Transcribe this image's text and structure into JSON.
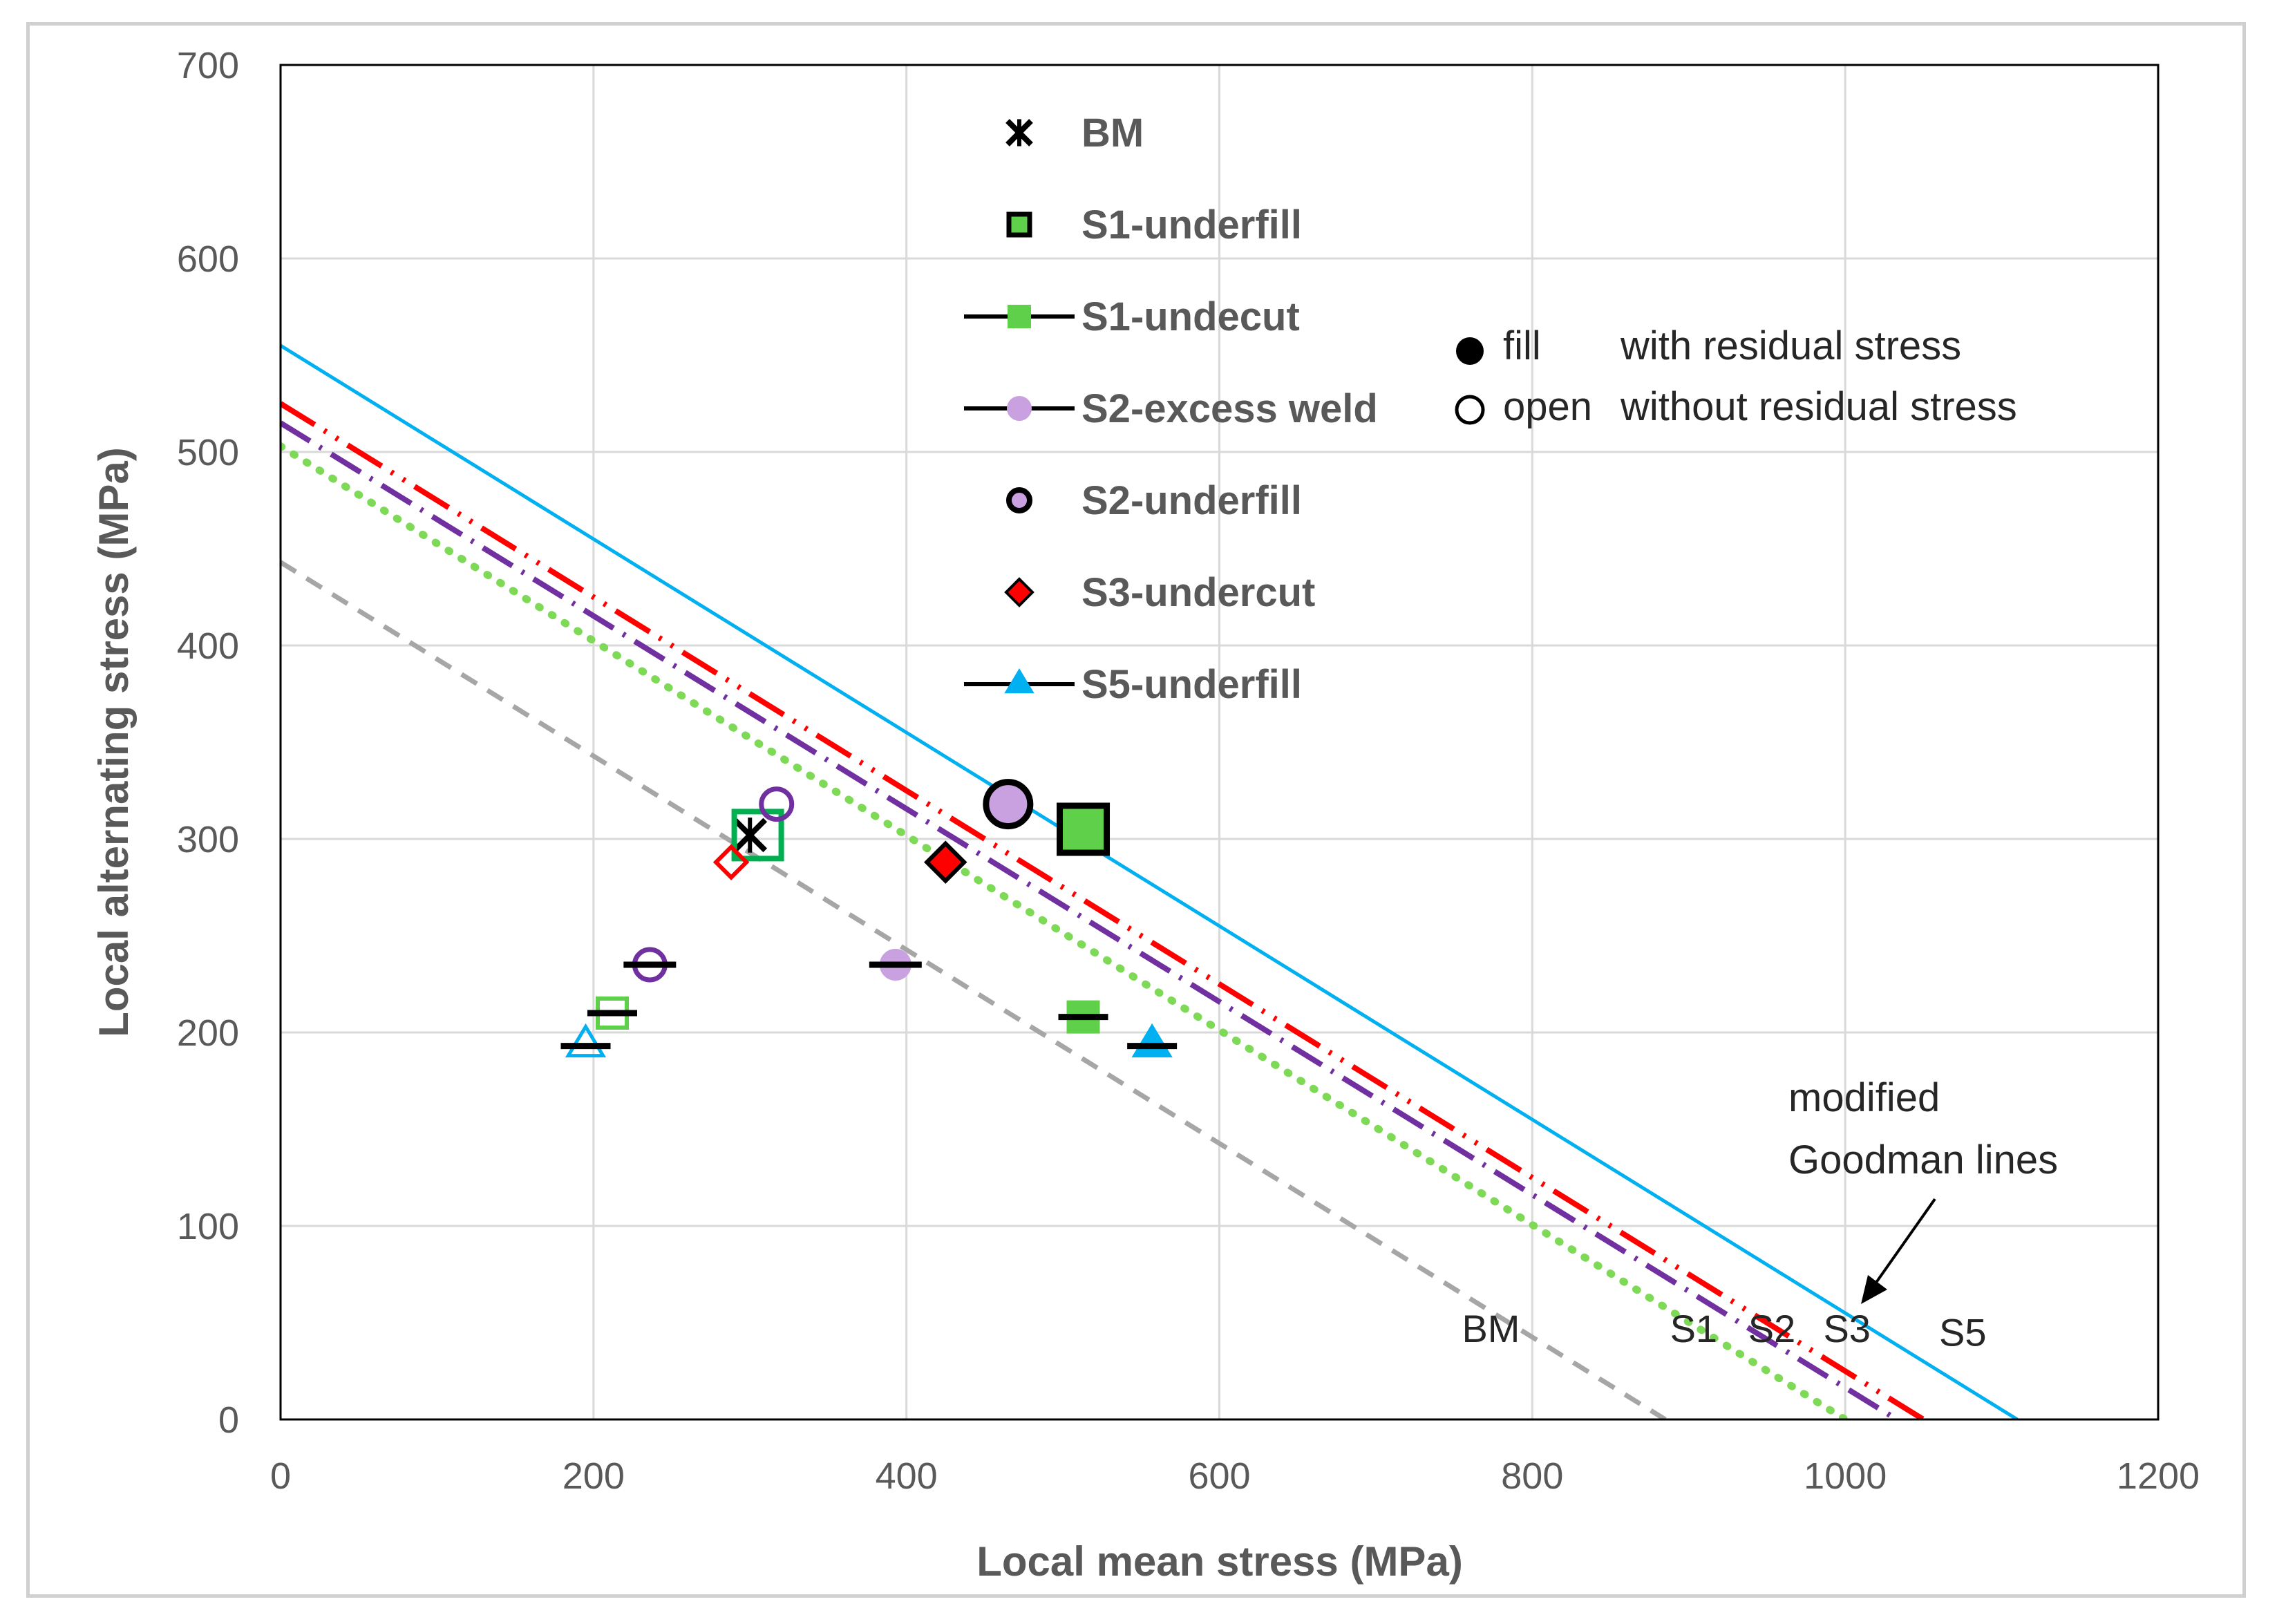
{
  "chart_data": {
    "type": "scatter",
    "xlabel": "Local mean stress (MPa)",
    "ylabel": "Local alternating stress (MPa)",
    "xlim": [
      0,
      1200
    ],
    "ylim": [
      0,
      700
    ],
    "x_ticks": [
      "0",
      "200",
      "400",
      "600",
      "800",
      "1000",
      "1200"
    ],
    "y_ticks": [
      "0",
      "100",
      "200",
      "300",
      "400",
      "500",
      "600",
      "700"
    ],
    "grid": true,
    "legend": [
      {
        "label": "BM",
        "marker": "asterisk",
        "color": "#000000"
      },
      {
        "label": "S1-underfill",
        "marker": "square",
        "color": "#5fd04a"
      },
      {
        "label": "S1-undecut",
        "marker": "square-dash",
        "color": "#5fd04a"
      },
      {
        "label": "S2-excess weld",
        "marker": "circle-dash",
        "color": "#c9a0e0"
      },
      {
        "label": "S2-underfill",
        "marker": "circle",
        "color": "#c9a0e0"
      },
      {
        "label": "S3-undercut",
        "marker": "diamond",
        "color": "#ff0000"
      },
      {
        "label": "S5-underfill",
        "marker": "triangle-dash",
        "color": "#00b0f0"
      }
    ],
    "fill_note": {
      "symbol": "fill",
      "text": "with residual stress"
    },
    "open_note": {
      "symbol": "open",
      "text": "without residual stress"
    },
    "goodman_note": [
      "modified",
      "Goodman lines"
    ],
    "goodman_lines": [
      {
        "name": "BM",
        "intercept_y": 443,
        "intercept_x": 885,
        "color": "#a6a6a6",
        "style": "dashed"
      },
      {
        "name": "S1",
        "intercept_y": 503,
        "intercept_x": 1000,
        "color": "#7ed957",
        "style": "dotted"
      },
      {
        "name": "S2",
        "intercept_y": 515,
        "intercept_x": 1033,
        "color": "#7030a0",
        "style": "dash-dot"
      },
      {
        "name": "S3",
        "intercept_y": 525,
        "intercept_x": 1050,
        "color": "#ff0000",
        "style": "dash-dot-dot"
      },
      {
        "name": "S5",
        "intercept_y": 555,
        "intercept_x": 1110,
        "color": "#00b0f0",
        "style": "solid"
      }
    ],
    "line_labels": [
      {
        "text": "BM",
        "x": 755,
        "y": 40
      },
      {
        "text": "S1",
        "x": 888,
        "y": 40
      },
      {
        "text": "S2",
        "x": 938,
        "y": 40
      },
      {
        "text": "S3",
        "x": 986,
        "y": 40
      },
      {
        "text": "S5",
        "x": 1060,
        "y": 38
      }
    ],
    "series": [
      {
        "name": "BM",
        "marker": "asterisk",
        "color": "#000000",
        "points": [
          {
            "x": 300,
            "y": 302,
            "filled": true
          }
        ]
      },
      {
        "name": "S1-underfill",
        "marker": "square",
        "color": "#5fd04a",
        "points": [
          {
            "x": 513,
            "y": 305,
            "filled": true
          },
          {
            "x": 305,
            "y": 302,
            "filled": false
          }
        ]
      },
      {
        "name": "S1-undecut",
        "marker": "square-dash",
        "color": "#5fd04a",
        "points": [
          {
            "x": 513,
            "y": 208,
            "filled": true
          },
          {
            "x": 212,
            "y": 210,
            "filled": false
          }
        ]
      },
      {
        "name": "S2-excess weld",
        "marker": "circle-dash",
        "color": "#c9a0e0",
        "points": [
          {
            "x": 393,
            "y": 235,
            "filled": true
          },
          {
            "x": 236,
            "y": 235,
            "filled": false
          }
        ]
      },
      {
        "name": "S2-underfill",
        "marker": "circle",
        "color": "#c9a0e0",
        "points": [
          {
            "x": 465,
            "y": 318,
            "filled": true
          },
          {
            "x": 317,
            "y": 318,
            "filled": false
          }
        ]
      },
      {
        "name": "S3-undercut",
        "marker": "diamond",
        "color": "#ff0000",
        "points": [
          {
            "x": 425,
            "y": 288,
            "filled": true
          },
          {
            "x": 288,
            "y": 288,
            "filled": false
          }
        ]
      },
      {
        "name": "S5-underfill",
        "marker": "triangle-dash",
        "color": "#00b0f0",
        "points": [
          {
            "x": 557,
            "y": 193,
            "filled": true
          },
          {
            "x": 195,
            "y": 193,
            "filled": false
          }
        ]
      }
    ]
  }
}
